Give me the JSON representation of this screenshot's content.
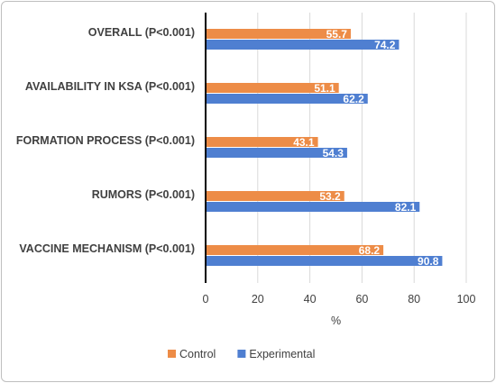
{
  "chart_data": {
    "type": "bar",
    "orientation": "horizontal",
    "categories": [
      "OVERALL (P<0.001)",
      "AVAILABILITY IN KSA (P<0.001)",
      "FORMATION PROCESS (P<0.001)",
      "RUMORS (P<0.001)",
      "VACCINE MECHANISM (P<0.001)"
    ],
    "series": [
      {
        "name": "Control",
        "values": [
          55.7,
          51.1,
          43.1,
          53.2,
          68.2
        ],
        "color": "#ED8C47"
      },
      {
        "name": "Experimental",
        "values": [
          74.2,
          62.2,
          54.3,
          82.1,
          90.8
        ],
        "color": "#4F7FD1"
      }
    ],
    "xlabel": "%",
    "xlim": [
      0,
      100
    ],
    "xticks": [
      0,
      20,
      40,
      60,
      80,
      100
    ],
    "grid": "vertical",
    "legend_position": "bottom",
    "show_data_labels": true
  }
}
